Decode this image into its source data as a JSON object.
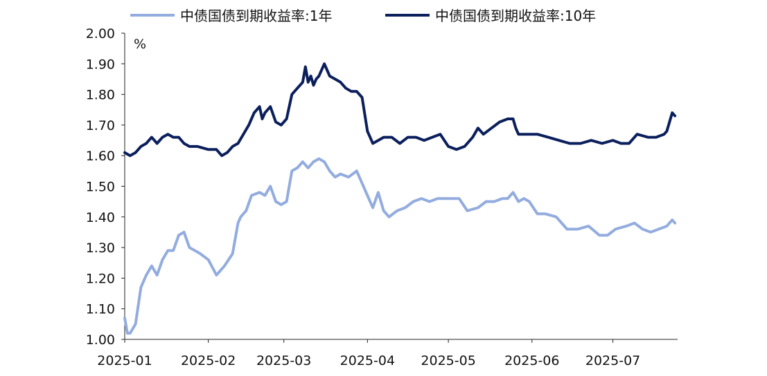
{
  "chart_data": {
    "type": "line",
    "ylabel": "%",
    "ylim": [
      1.0,
      2.0
    ],
    "yticks": [
      "2.00",
      "1.90",
      "1.80",
      "1.70",
      "1.60",
      "1.50",
      "1.40",
      "1.30",
      "1.20",
      "1.10",
      "1.00"
    ],
    "xlim": [
      "2025-01-01",
      "2025-07-25"
    ],
    "xticks": [
      {
        "label": "2025-01",
        "date": "2025-01-01"
      },
      {
        "label": "2025-02",
        "date": "2025-02-01"
      },
      {
        "label": "2025-03",
        "date": "2025-03-01"
      },
      {
        "label": "2025-04",
        "date": "2025-04-01"
      },
      {
        "label": "2025-05",
        "date": "2025-05-01"
      },
      {
        "label": "2025-06",
        "date": "2025-06-01"
      },
      {
        "label": "2025-07",
        "date": "2025-07-01"
      }
    ],
    "legend_position": "top",
    "series": [
      {
        "name": "中债国债到期收益率:1年",
        "color": "#93acdf",
        "x": [
          "2025-01-01",
          "2025-01-02",
          "2025-01-03",
          "2025-01-05",
          "2025-01-07",
          "2025-01-09",
          "2025-01-11",
          "2025-01-13",
          "2025-01-15",
          "2025-01-17",
          "2025-01-19",
          "2025-01-21",
          "2025-01-23",
          "2025-01-25",
          "2025-01-27",
          "2025-01-29",
          "2025-02-01",
          "2025-02-04",
          "2025-02-07",
          "2025-02-10",
          "2025-02-12",
          "2025-02-13",
          "2025-02-15",
          "2025-02-17",
          "2025-02-20",
          "2025-02-22",
          "2025-02-24",
          "2025-02-26",
          "2025-02-28",
          "2025-03-02",
          "2025-03-04",
          "2025-03-06",
          "2025-03-08",
          "2025-03-10",
          "2025-03-12",
          "2025-03-14",
          "2025-03-16",
          "2025-03-18",
          "2025-03-20",
          "2025-03-22",
          "2025-03-25",
          "2025-03-28",
          "2025-04-01",
          "2025-04-03",
          "2025-04-05",
          "2025-04-07",
          "2025-04-09",
          "2025-04-12",
          "2025-04-15",
          "2025-04-18",
          "2025-04-21",
          "2025-04-24",
          "2025-04-27",
          "2025-04-30",
          "2025-05-05",
          "2025-05-08",
          "2025-05-12",
          "2025-05-15",
          "2025-05-18",
          "2025-05-21",
          "2025-05-23",
          "2025-05-25",
          "2025-05-27",
          "2025-05-29",
          "2025-05-31",
          "2025-06-03",
          "2025-06-06",
          "2025-06-10",
          "2025-06-14",
          "2025-06-18",
          "2025-06-22",
          "2025-06-26",
          "2025-06-29",
          "2025-07-02",
          "2025-07-06",
          "2025-07-09",
          "2025-07-12",
          "2025-07-15",
          "2025-07-18",
          "2025-07-21",
          "2025-07-23",
          "2025-07-24"
        ],
        "y": [
          1.07,
          1.02,
          1.02,
          1.05,
          1.17,
          1.21,
          1.24,
          1.21,
          1.26,
          1.29,
          1.29,
          1.34,
          1.35,
          1.3,
          1.29,
          1.28,
          1.26,
          1.21,
          1.24,
          1.28,
          1.38,
          1.4,
          1.42,
          1.47,
          1.48,
          1.47,
          1.5,
          1.45,
          1.44,
          1.45,
          1.55,
          1.56,
          1.58,
          1.56,
          1.58,
          1.59,
          1.58,
          1.55,
          1.53,
          1.54,
          1.53,
          1.55,
          1.47,
          1.43,
          1.48,
          1.42,
          1.4,
          1.42,
          1.43,
          1.45,
          1.46,
          1.45,
          1.46,
          1.46,
          1.46,
          1.42,
          1.43,
          1.45,
          1.45,
          1.46,
          1.46,
          1.48,
          1.45,
          1.46,
          1.45,
          1.41,
          1.41,
          1.4,
          1.36,
          1.36,
          1.37,
          1.34,
          1.34,
          1.36,
          1.37,
          1.38,
          1.36,
          1.35,
          1.36,
          1.37,
          1.39,
          1.38
        ]
      },
      {
        "name": "中债国债到期收益率:10年",
        "color": "#0b1f5c",
        "x": [
          "2025-01-01",
          "2025-01-03",
          "2025-01-05",
          "2025-01-07",
          "2025-01-09",
          "2025-01-11",
          "2025-01-13",
          "2025-01-15",
          "2025-01-17",
          "2025-01-19",
          "2025-01-21",
          "2025-01-23",
          "2025-01-25",
          "2025-01-28",
          "2025-02-01",
          "2025-02-04",
          "2025-02-06",
          "2025-02-08",
          "2025-02-10",
          "2025-02-12",
          "2025-02-14",
          "2025-02-16",
          "2025-02-18",
          "2025-02-20",
          "2025-02-21",
          "2025-02-22",
          "2025-02-24",
          "2025-02-26",
          "2025-02-28",
          "2025-03-02",
          "2025-03-04",
          "2025-03-06",
          "2025-03-08",
          "2025-03-09",
          "2025-03-10",
          "2025-03-11",
          "2025-03-12",
          "2025-03-13",
          "2025-03-14",
          "2025-03-15",
          "2025-03-16",
          "2025-03-17",
          "2025-03-18",
          "2025-03-20",
          "2025-03-22",
          "2025-03-24",
          "2025-03-26",
          "2025-03-28",
          "2025-03-30",
          "2025-04-01",
          "2025-04-03",
          "2025-04-05",
          "2025-04-07",
          "2025-04-10",
          "2025-04-13",
          "2025-04-16",
          "2025-04-19",
          "2025-04-22",
          "2025-04-25",
          "2025-04-28",
          "2025-05-01",
          "2025-05-04",
          "2025-05-07",
          "2025-05-10",
          "2025-05-12",
          "2025-05-14",
          "2025-05-17",
          "2025-05-20",
          "2025-05-23",
          "2025-05-25",
          "2025-05-26",
          "2025-05-27",
          "2025-05-30",
          "2025-06-03",
          "2025-06-07",
          "2025-06-11",
          "2025-06-15",
          "2025-06-19",
          "2025-06-23",
          "2025-06-27",
          "2025-07-01",
          "2025-07-04",
          "2025-07-07",
          "2025-07-10",
          "2025-07-14",
          "2025-07-17",
          "2025-07-20",
          "2025-07-21",
          "2025-07-22",
          "2025-07-23",
          "2025-07-24"
        ],
        "y": [
          1.61,
          1.6,
          1.61,
          1.63,
          1.64,
          1.66,
          1.64,
          1.66,
          1.67,
          1.66,
          1.66,
          1.64,
          1.63,
          1.63,
          1.62,
          1.62,
          1.6,
          1.61,
          1.63,
          1.64,
          1.67,
          1.7,
          1.74,
          1.76,
          1.72,
          1.74,
          1.76,
          1.71,
          1.7,
          1.72,
          1.8,
          1.82,
          1.84,
          1.89,
          1.84,
          1.86,
          1.83,
          1.85,
          1.86,
          1.88,
          1.9,
          1.88,
          1.86,
          1.85,
          1.84,
          1.82,
          1.81,
          1.81,
          1.79,
          1.68,
          1.64,
          1.65,
          1.66,
          1.66,
          1.64,
          1.66,
          1.66,
          1.65,
          1.66,
          1.67,
          1.63,
          1.62,
          1.63,
          1.66,
          1.69,
          1.67,
          1.69,
          1.71,
          1.72,
          1.72,
          1.69,
          1.67,
          1.67,
          1.67,
          1.66,
          1.65,
          1.64,
          1.64,
          1.65,
          1.64,
          1.65,
          1.64,
          1.64,
          1.67,
          1.66,
          1.66,
          1.67,
          1.68,
          1.71,
          1.74,
          1.73
        ]
      }
    ]
  }
}
